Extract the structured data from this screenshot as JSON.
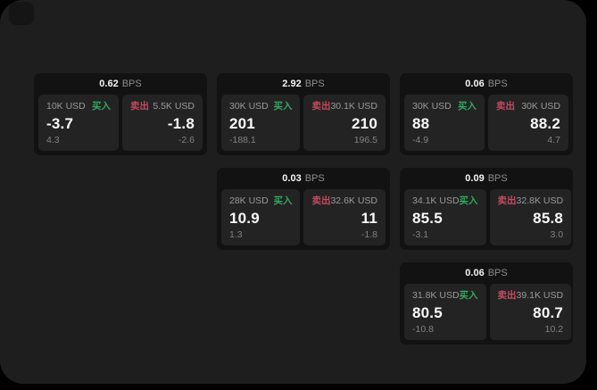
{
  "colors": {
    "surface": "#1e1e1e",
    "card_bg": "#121212",
    "panel_bg": "#232323",
    "buy_green": "#31a85f",
    "sell_red": "#c34b5e",
    "text_primary": "#f5f5f5",
    "text_secondary": "#9a9a9a"
  },
  "labels": {
    "bps": "BPS",
    "buy": "买入",
    "sell": "卖出"
  },
  "cards": [
    {
      "col": 1,
      "row": 1,
      "bps": "0.62",
      "buy": {
        "size": "10K USD",
        "price": "-3.7",
        "delta": "4.3"
      },
      "sell": {
        "size": "5.5K USD",
        "price": "-1.8",
        "delta": "-2.6"
      }
    },
    {
      "col": 2,
      "row": 1,
      "bps": "2.92",
      "buy": {
        "size": "30K USD",
        "price": "201",
        "delta": "-188.1"
      },
      "sell": {
        "size": "30.1K USD",
        "price": "210",
        "delta": "196.5"
      }
    },
    {
      "col": 3,
      "row": 1,
      "bps": "0.06",
      "buy": {
        "size": "30K USD",
        "price": "88",
        "delta": "-4.9"
      },
      "sell": {
        "size": "30K USD",
        "price": "88.2",
        "delta": "4.7"
      }
    },
    {
      "col": 2,
      "row": 2,
      "bps": "0.03",
      "buy": {
        "size": "28K USD",
        "price": "10.9",
        "delta": "1.3"
      },
      "sell": {
        "size": "32.6K USD",
        "price": "11",
        "delta": "-1.8"
      }
    },
    {
      "col": 3,
      "row": 2,
      "bps": "0.09",
      "buy": {
        "size": "34.1K USD",
        "price": "85.5",
        "delta": "-3.1"
      },
      "sell": {
        "size": "32.8K USD",
        "price": "85.8",
        "delta": "3.0"
      }
    },
    {
      "col": 3,
      "row": 3,
      "bps": "0.06",
      "buy": {
        "size": "31.8K USD",
        "price": "80.5",
        "delta": "-10.8"
      },
      "sell": {
        "size": "39.1K USD",
        "price": "80.7",
        "delta": "10.2"
      }
    }
  ]
}
